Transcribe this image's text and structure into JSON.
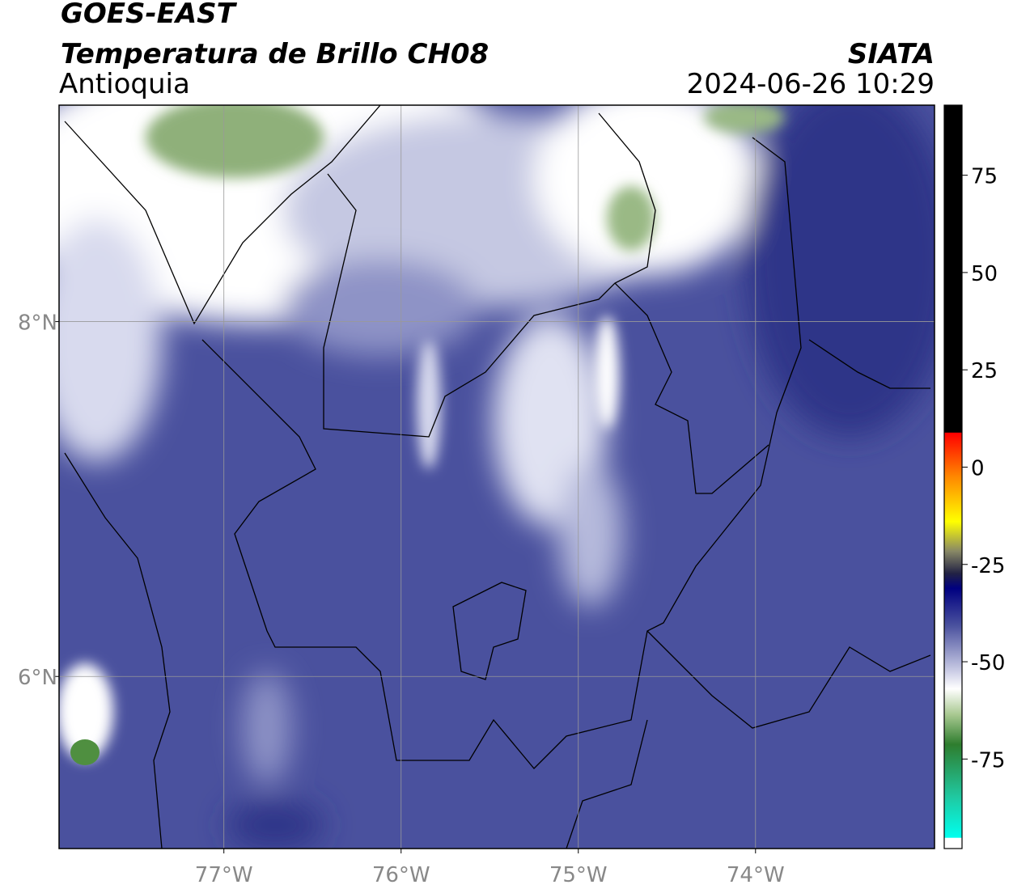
{
  "header": {
    "title": "GOES-EAST",
    "subtitle": "Temperatura de Brillo CH08",
    "region": "Antioquia",
    "source": "SIATA",
    "datetime": "2024-06-26 10:29"
  },
  "map": {
    "lonlim": [
      -77.93,
      -72.99
    ],
    "latlim": [
      5.03,
      9.22
    ],
    "lon_ticks": [
      {
        "value": -77,
        "label": "77°W"
      },
      {
        "value": -76,
        "label": "76°W"
      },
      {
        "value": -75,
        "label": "75°W"
      },
      {
        "value": -74,
        "label": "74°W"
      }
    ],
    "lat_ticks": [
      {
        "value": 8,
        "label": "8°N"
      },
      {
        "value": 6,
        "label": "6°N"
      }
    ]
  },
  "colorbar": {
    "lim": [
      -98,
      93
    ],
    "ticks": [
      75,
      50,
      25,
      0,
      -25,
      -50,
      -75
    ]
  }
}
